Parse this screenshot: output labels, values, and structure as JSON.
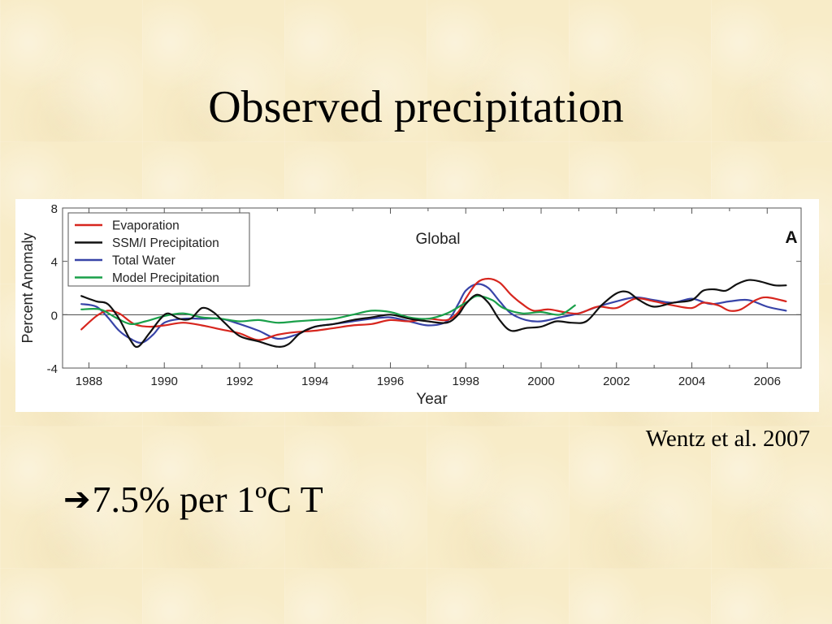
{
  "slide": {
    "title": "Observed precipitation",
    "citation": "Wentz et al. 2007",
    "bullet_arrow": "➔",
    "bullet_text": "7.5% per 1ºC T"
  },
  "chart_data": {
    "type": "line",
    "title": "Global",
    "panel_label": "A",
    "xlabel": "Year",
    "ylabel": "Percent Anomaly",
    "xlim": [
      1987.3,
      2006.9
    ],
    "ylim": [
      -4,
      8
    ],
    "x_ticks": [
      1988,
      1990,
      1992,
      1994,
      1996,
      1998,
      2000,
      2002,
      2004,
      2006
    ],
    "y_ticks": [
      -4,
      0,
      4,
      8
    ],
    "zero_line": true,
    "grid": false,
    "legend_placement": "top-left",
    "series": [
      {
        "name": "Evaporation",
        "color": "#d7261e",
        "points": [
          [
            1987.8,
            -1.1
          ],
          [
            1988.2,
            -0.1
          ],
          [
            1988.5,
            0.3
          ],
          [
            1988.8,
            0.1
          ],
          [
            1989.2,
            -0.7
          ],
          [
            1989.6,
            -0.9
          ],
          [
            1990.0,
            -0.8
          ],
          [
            1990.5,
            -0.6
          ],
          [
            1991.0,
            -0.8
          ],
          [
            1991.5,
            -1.1
          ],
          [
            1992.0,
            -1.4
          ],
          [
            1992.5,
            -1.9
          ],
          [
            1993.0,
            -1.5
          ],
          [
            1993.5,
            -1.3
          ],
          [
            1994.0,
            -1.2
          ],
          [
            1994.5,
            -1.0
          ],
          [
            1995.0,
            -0.8
          ],
          [
            1995.5,
            -0.7
          ],
          [
            1996.0,
            -0.4
          ],
          [
            1996.5,
            -0.5
          ],
          [
            1997.0,
            -0.3
          ],
          [
            1997.5,
            -0.4
          ],
          [
            1997.8,
            0.2
          ],
          [
            1998.0,
            1.2
          ],
          [
            1998.3,
            2.4
          ],
          [
            1998.6,
            2.7
          ],
          [
            1998.9,
            2.4
          ],
          [
            1999.2,
            1.5
          ],
          [
            1999.5,
            0.8
          ],
          [
            1999.8,
            0.3
          ],
          [
            2000.2,
            0.4
          ],
          [
            2000.6,
            0.2
          ],
          [
            2001.0,
            0.1
          ],
          [
            2001.5,
            0.6
          ],
          [
            2002.0,
            0.5
          ],
          [
            2002.5,
            1.2
          ],
          [
            2003.0,
            1.0
          ],
          [
            2003.5,
            0.7
          ],
          [
            2004.0,
            0.5
          ],
          [
            2004.3,
            0.9
          ],
          [
            2004.7,
            0.7
          ],
          [
            2005.0,
            0.3
          ],
          [
            2005.3,
            0.4
          ],
          [
            2005.7,
            1.1
          ],
          [
            2006.0,
            1.3
          ],
          [
            2006.5,
            1.0
          ]
        ]
      },
      {
        "name": "SSM/I Precipitation",
        "color": "#111111",
        "points": [
          [
            1987.8,
            1.4
          ],
          [
            1988.2,
            1.0
          ],
          [
            1988.5,
            0.8
          ],
          [
            1988.8,
            -0.3
          ],
          [
            1989.1,
            -1.9
          ],
          [
            1989.3,
            -2.4
          ],
          [
            1989.6,
            -1.4
          ],
          [
            1989.9,
            -0.3
          ],
          [
            1990.1,
            0.1
          ],
          [
            1990.4,
            -0.3
          ],
          [
            1990.7,
            -0.3
          ],
          [
            1991.0,
            0.5
          ],
          [
            1991.3,
            0.2
          ],
          [
            1991.6,
            -0.6
          ],
          [
            1992.0,
            -1.6
          ],
          [
            1992.5,
            -2.0
          ],
          [
            1993.0,
            -2.4
          ],
          [
            1993.3,
            -2.2
          ],
          [
            1993.6,
            -1.4
          ],
          [
            1994.0,
            -0.9
          ],
          [
            1994.5,
            -0.7
          ],
          [
            1995.0,
            -0.4
          ],
          [
            1995.5,
            -0.2
          ],
          [
            1996.0,
            0.0
          ],
          [
            1996.5,
            -0.3
          ],
          [
            1997.0,
            -0.5
          ],
          [
            1997.5,
            -0.6
          ],
          [
            1997.8,
            0.0
          ],
          [
            1998.0,
            0.8
          ],
          [
            1998.3,
            1.5
          ],
          [
            1998.6,
            0.9
          ],
          [
            1998.9,
            -0.4
          ],
          [
            1999.2,
            -1.2
          ],
          [
            1999.6,
            -1.0
          ],
          [
            2000.0,
            -0.9
          ],
          [
            2000.4,
            -0.5
          ],
          [
            2000.8,
            -0.6
          ],
          [
            2001.2,
            -0.5
          ],
          [
            2001.6,
            0.7
          ],
          [
            2002.0,
            1.6
          ],
          [
            2002.3,
            1.7
          ],
          [
            2002.6,
            1.1
          ],
          [
            2003.0,
            0.6
          ],
          [
            2003.5,
            0.9
          ],
          [
            2004.0,
            1.1
          ],
          [
            2004.3,
            1.8
          ],
          [
            2004.6,
            1.9
          ],
          [
            2004.9,
            1.8
          ],
          [
            2005.2,
            2.3
          ],
          [
            2005.5,
            2.6
          ],
          [
            2005.8,
            2.5
          ],
          [
            2006.2,
            2.2
          ],
          [
            2006.5,
            2.2
          ]
        ]
      },
      {
        "name": "Total Water",
        "color": "#3844a8",
        "points": [
          [
            1987.8,
            0.8
          ],
          [
            1988.2,
            0.6
          ],
          [
            1988.5,
            -0.2
          ],
          [
            1988.8,
            -1.2
          ],
          [
            1989.1,
            -1.8
          ],
          [
            1989.4,
            -2.1
          ],
          [
            1989.7,
            -1.5
          ],
          [
            1990.0,
            -0.6
          ],
          [
            1990.5,
            -0.3
          ],
          [
            1991.0,
            -0.3
          ],
          [
            1991.5,
            -0.3
          ],
          [
            1992.0,
            -0.7
          ],
          [
            1992.5,
            -1.2
          ],
          [
            1993.0,
            -1.8
          ],
          [
            1993.5,
            -1.5
          ],
          [
            1994.0,
            -0.9
          ],
          [
            1994.5,
            -0.7
          ],
          [
            1995.0,
            -0.5
          ],
          [
            1995.5,
            -0.3
          ],
          [
            1996.0,
            -0.2
          ],
          [
            1996.5,
            -0.5
          ],
          [
            1997.0,
            -0.8
          ],
          [
            1997.5,
            -0.5
          ],
          [
            1997.8,
            0.8
          ],
          [
            1998.0,
            1.8
          ],
          [
            1998.3,
            2.3
          ],
          [
            1998.6,
            2.0
          ],
          [
            1998.9,
            1.0
          ],
          [
            1999.2,
            0.1
          ],
          [
            1999.6,
            -0.4
          ],
          [
            2000.0,
            -0.5
          ],
          [
            2000.5,
            -0.2
          ],
          [
            2001.0,
            0.1
          ],
          [
            2001.5,
            0.6
          ],
          [
            2002.0,
            1.0
          ],
          [
            2002.5,
            1.3
          ],
          [
            2003.0,
            1.1
          ],
          [
            2003.5,
            0.9
          ],
          [
            2004.0,
            1.2
          ],
          [
            2004.5,
            0.8
          ],
          [
            2005.0,
            1.0
          ],
          [
            2005.5,
            1.1
          ],
          [
            2006.0,
            0.6
          ],
          [
            2006.5,
            0.3
          ]
        ]
      },
      {
        "name": "Model Precipitation",
        "color": "#1aa04a",
        "points": [
          [
            1987.8,
            0.4
          ],
          [
            1988.3,
            0.4
          ],
          [
            1988.7,
            -0.2
          ],
          [
            1989.1,
            -0.7
          ],
          [
            1989.5,
            -0.5
          ],
          [
            1990.0,
            -0.1
          ],
          [
            1990.5,
            0.1
          ],
          [
            1991.0,
            -0.2
          ],
          [
            1991.5,
            -0.3
          ],
          [
            1992.0,
            -0.5
          ],
          [
            1992.5,
            -0.4
          ],
          [
            1993.0,
            -0.6
          ],
          [
            1993.5,
            -0.5
          ],
          [
            1994.0,
            -0.4
          ],
          [
            1994.5,
            -0.3
          ],
          [
            1995.0,
            0.0
          ],
          [
            1995.5,
            0.3
          ],
          [
            1996.0,
            0.2
          ],
          [
            1996.5,
            -0.2
          ],
          [
            1997.0,
            -0.3
          ],
          [
            1997.5,
            0.1
          ],
          [
            1998.0,
            0.9
          ],
          [
            1998.3,
            1.4
          ],
          [
            1998.7,
            1.1
          ],
          [
            1999.0,
            0.5
          ],
          [
            1999.5,
            0.1
          ],
          [
            2000.0,
            0.2
          ],
          [
            2000.5,
            0.0
          ],
          [
            2000.9,
            0.7
          ]
        ]
      }
    ]
  }
}
